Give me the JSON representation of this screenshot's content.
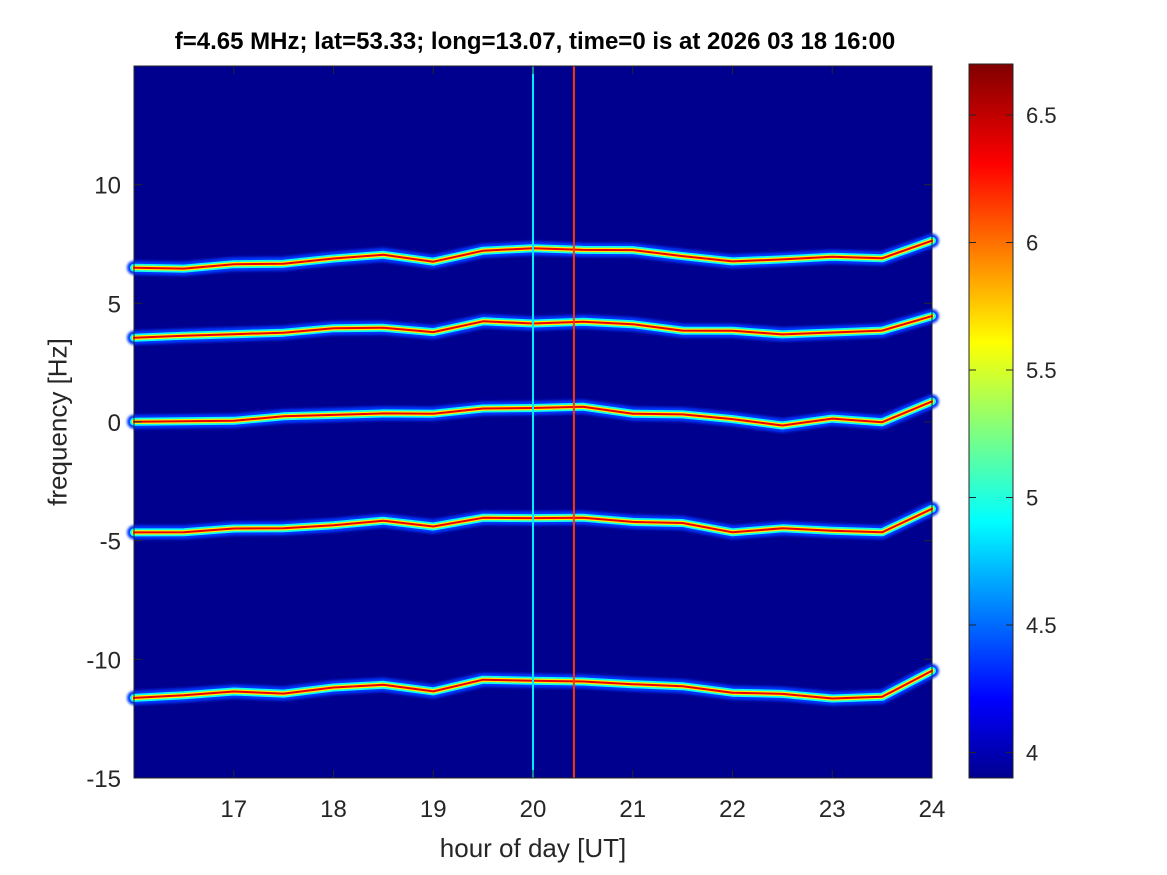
{
  "chart_data": {
    "type": "heatmap",
    "title": "f=4.65 MHz;  lat=53.33; long=13.07, time=0 is at 2026 03 18 16:00",
    "xlabel": "hour of day [UT]",
    "ylabel": "frequency [Hz]",
    "xlim": [
      16.0,
      24.0
    ],
    "ylim": [
      -15,
      15
    ],
    "xticks": [
      17,
      18,
      19,
      20,
      21,
      22,
      23,
      24
    ],
    "yticks": [
      -15,
      -10,
      -5,
      0,
      5,
      10
    ],
    "colorbar": {
      "colormap": "jet",
      "range": [
        3.9,
        6.7
      ],
      "ticks": [
        4,
        4.5,
        5,
        5.5,
        6,
        6.5
      ]
    },
    "background_value": 3.9,
    "traces": [
      {
        "x": [
          16.0,
          16.5,
          17.0,
          17.5,
          18.0,
          18.5,
          19.0,
          19.5,
          20.0,
          20.5,
          21.0,
          21.5,
          22.0,
          22.5,
          23.0,
          23.5,
          24.0
        ],
        "y": [
          6.5,
          6.5,
          6.6,
          6.7,
          6.9,
          7.0,
          6.8,
          7.2,
          7.3,
          7.3,
          7.2,
          7.0,
          6.8,
          6.8,
          7.0,
          6.9,
          7.6
        ]
      },
      {
        "x": [
          16.0,
          16.5,
          17.0,
          17.5,
          18.0,
          18.5,
          19.0,
          19.5,
          20.0,
          20.5,
          21.0,
          21.5,
          22.0,
          22.5,
          23.0,
          23.5,
          24.0
        ],
        "y": [
          3.6,
          3.6,
          3.7,
          3.8,
          3.9,
          4.0,
          3.8,
          4.2,
          4.2,
          4.2,
          4.1,
          3.9,
          3.8,
          3.7,
          3.8,
          3.8,
          4.5
        ]
      },
      {
        "x": [
          16.0,
          16.5,
          17.0,
          17.5,
          18.0,
          18.5,
          19.0,
          19.5,
          20.0,
          20.5,
          21.0,
          21.5,
          22.0,
          22.5,
          23.0,
          23.5,
          24.0
        ],
        "y": [
          0.0,
          0.0,
          0.1,
          0.2,
          0.3,
          0.4,
          0.3,
          0.6,
          0.6,
          0.6,
          0.4,
          0.3,
          0.1,
          -0.1,
          0.1,
          0.0,
          0.9
        ]
      },
      {
        "x": [
          16.0,
          16.5,
          17.0,
          17.5,
          18.0,
          18.5,
          19.0,
          19.5,
          20.0,
          20.5,
          21.0,
          21.5,
          22.0,
          22.5,
          23.0,
          23.5,
          24.0
        ],
        "y": [
          -4.7,
          -4.6,
          -4.5,
          -4.5,
          -4.3,
          -4.2,
          -4.4,
          -4.0,
          -4.1,
          -4.0,
          -4.2,
          -4.3,
          -4.6,
          -4.5,
          -4.6,
          -4.6,
          -3.7
        ]
      },
      {
        "x": [
          16.0,
          16.5,
          17.0,
          17.5,
          18.0,
          18.5,
          19.0,
          19.5,
          20.0,
          20.5,
          21.0,
          21.5,
          22.0,
          22.5,
          23.0,
          23.5,
          24.0
        ],
        "y": [
          -11.6,
          -11.5,
          -11.4,
          -11.4,
          -11.2,
          -11.1,
          -11.3,
          -10.9,
          -10.9,
          -10.9,
          -11.1,
          -11.1,
          -11.4,
          -11.5,
          -11.6,
          -11.6,
          -10.5
        ]
      }
    ],
    "vertical_lines": [
      {
        "x": 20.0,
        "value": 4.9
      },
      {
        "x": 20.41,
        "value": 6.2
      }
    ]
  }
}
